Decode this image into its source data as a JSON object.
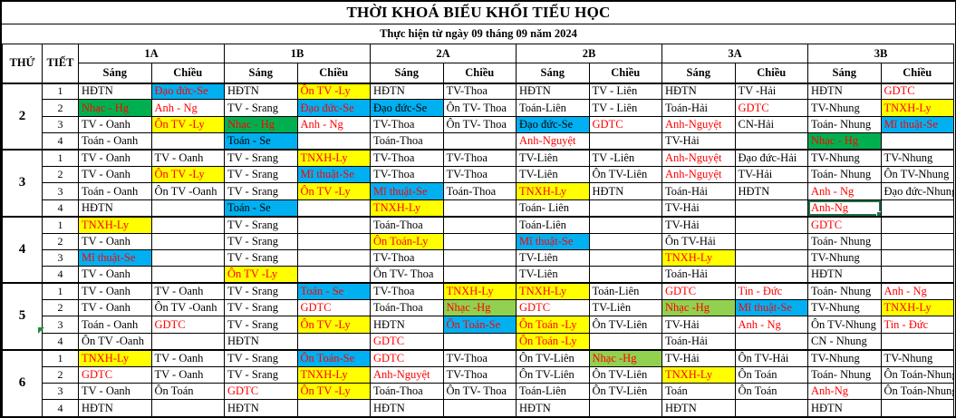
{
  "title": "THỜI KHOÁ BIỂU KHỐI TIỂU HỌC",
  "subtitle": "Thực hiện từ ngày 09 tháng 09 năm 2024",
  "header": {
    "day_col": "THỨ",
    "period_col": "TIẾT",
    "classes": [
      "1A",
      "1B",
      "2A",
      "2B",
      "3A",
      "3B"
    ],
    "session_morning": "Sáng",
    "session_afternoon": "Chiều"
  },
  "colors": {
    "highlight_yellow": "#FFFF00",
    "highlight_blue": "#00B0F0",
    "highlight_green": "#00B050",
    "highlight_lightgreen": "#92D050",
    "accent_red": "#FF0000",
    "selection_green": "#1F7245"
  },
  "days": [
    {
      "day": "2",
      "periods": [
        {
          "period": "1",
          "cells": [
            {
              "t": "HĐTN"
            },
            {
              "t": "Đạo đức-Se",
              "fg": "red",
              "bg": "blue"
            },
            {
              "t": "HĐTN"
            },
            {
              "t": "Ôn TV -Ly",
              "fg": "red",
              "bg": "yellow"
            },
            {
              "t": "HĐTN"
            },
            {
              "t": "TV-Thoa"
            },
            {
              "t": "HĐTN"
            },
            {
              "t": "TV - Liên"
            },
            {
              "t": "HĐTN"
            },
            {
              "t": "TV -Hải"
            },
            {
              "t": "HĐTN"
            },
            {
              "t": "GDTC",
              "fg": "red"
            }
          ]
        },
        {
          "period": "2",
          "cells": [
            {
              "t": "Nhạc - Hg",
              "fg": "red",
              "bg": "green"
            },
            {
              "t": "Anh - Ng",
              "fg": "red"
            },
            {
              "t": "TV - Srang"
            },
            {
              "t": "Đạo đức-Se",
              "fg": "red",
              "bg": "blue"
            },
            {
              "t": "Đạo đức-Se",
              "bg": "blue"
            },
            {
              "t": "Ôn TV- Thoa"
            },
            {
              "t": "Toán-Liên"
            },
            {
              "t": "TV - Liên"
            },
            {
              "t": "Toán-Hải"
            },
            {
              "t": "GDTC",
              "fg": "red"
            },
            {
              "t": "TV-Nhung"
            },
            {
              "t": "TNXH-Ly",
              "fg": "red",
              "bg": "yellow"
            }
          ]
        },
        {
          "period": "3",
          "cells": [
            {
              "t": "TV - Oanh"
            },
            {
              "t": "Ôn TV -Ly",
              "fg": "red",
              "bg": "yellow"
            },
            {
              "t": "Nhạc - Hg",
              "fg": "red",
              "bg": "green"
            },
            {
              "t": "Anh - Ng",
              "fg": "red"
            },
            {
              "t": "TV-Thoa"
            },
            {
              "t": "Ôn TV- Thoa"
            },
            {
              "t": "Đạo đức-Se",
              "bg": "blue"
            },
            {
              "t": "GDTC",
              "fg": "red"
            },
            {
              "t": "Anh-Nguyệt",
              "fg": "red"
            },
            {
              "t": "CN-Hải"
            },
            {
              "t": "Toán- Nhung"
            },
            {
              "t": "Mĩ thuật-Se",
              "fg": "red",
              "bg": "blue"
            }
          ]
        },
        {
          "period": "4",
          "cells": [
            {
              "t": "Toán - Oanh"
            },
            {},
            {
              "t": "Toán - Se",
              "bg": "blue"
            },
            {},
            {
              "t": "Toán-Thoa"
            },
            {},
            {
              "t": "Anh-Nguyệt",
              "fg": "red"
            },
            {},
            {
              "t": "TV-Hải"
            },
            {},
            {
              "t": "Nhạc - Hg",
              "fg": "red",
              "bg": "green"
            },
            {}
          ]
        }
      ]
    },
    {
      "day": "3",
      "periods": [
        {
          "period": "1",
          "cells": [
            {
              "t": "TV - Oanh"
            },
            {
              "t": "TV - Oanh"
            },
            {
              "t": "TV - Srang"
            },
            {
              "t": "TNXH-Ly",
              "fg": "red",
              "bg": "yellow"
            },
            {
              "t": "TV-Thoa"
            },
            {
              "t": "TV-Thoa"
            },
            {
              "t": "TV-Liên"
            },
            {
              "t": "TV -Liên"
            },
            {
              "t": "Anh-Nguyệt",
              "fg": "red"
            },
            {
              "t": "Đạo đức-Hải"
            },
            {
              "t": "TV-Nhung"
            },
            {
              "t": "TV-Nhung"
            }
          ]
        },
        {
          "period": "2",
          "cells": [
            {
              "t": "TV - Oanh"
            },
            {
              "t": "Ôn TV -Ly",
              "fg": "red",
              "bg": "yellow"
            },
            {
              "t": "TV - Srang"
            },
            {
              "t": "Mĩ thuật-Se",
              "fg": "red",
              "bg": "blue"
            },
            {
              "t": "TV-Thoa"
            },
            {
              "t": "TV-Thoa"
            },
            {
              "t": "TV-Liên"
            },
            {
              "t": "Ôn TV-Liên"
            },
            {
              "t": "Anh-Nguyệt",
              "fg": "red"
            },
            {
              "t": "TV-Hải"
            },
            {
              "t": "Toán- Nhung"
            },
            {
              "t": "Ôn TV-Nhung"
            }
          ]
        },
        {
          "period": "3",
          "cells": [
            {
              "t": "Toán - Oanh"
            },
            {
              "t": "Ôn TV -Oanh"
            },
            {
              "t": "TV - Srang"
            },
            {
              "t": "Ôn TV -Ly",
              "fg": "red",
              "bg": "yellow"
            },
            {
              "t": "Mĩ thuật-Se",
              "fg": "red",
              "bg": "blue"
            },
            {
              "t": "Toán-Thoa"
            },
            {
              "t": "TNXH-Ly",
              "fg": "red",
              "bg": "yellow"
            },
            {
              "t": "HĐTN"
            },
            {
              "t": "Toán-Hải"
            },
            {
              "t": "HĐTN"
            },
            {
              "t": "Anh - Ng",
              "fg": "red"
            },
            {
              "t": "Đạo đức-Nhung"
            }
          ]
        },
        {
          "period": "4",
          "cells": [
            {
              "t": "HĐTN"
            },
            {},
            {
              "t": "Toán - Se",
              "bg": "blue"
            },
            {},
            {
              "t": "TNXH-Ly",
              "fg": "red",
              "bg": "yellow"
            },
            {},
            {
              "t": "Toán- Liên"
            },
            {},
            {
              "t": "TV-Hải"
            },
            {},
            {
              "t": "Anh-Ng",
              "fg": "red",
              "selected": true
            },
            {}
          ]
        }
      ]
    },
    {
      "day": "4",
      "periods": [
        {
          "period": "1",
          "cells": [
            {
              "t": "TNXH-Ly",
              "fg": "red",
              "bg": "yellow"
            },
            {},
            {
              "t": "TV - Srang"
            },
            {},
            {
              "t": "Toán-Thoa"
            },
            {},
            {
              "t": "Toán-Liên"
            },
            {},
            {
              "t": "TV-Hải"
            },
            {},
            {
              "t": "GDTC",
              "fg": "red"
            },
            {}
          ]
        },
        {
          "period": "2",
          "cells": [
            {
              "t": "TV - Oanh"
            },
            {},
            {
              "t": "TV - Srang"
            },
            {},
            {
              "t": "Ôn Toán-Ly",
              "fg": "red",
              "bg": "yellow"
            },
            {},
            {
              "t": "Mĩ thuật-Se",
              "fg": "red",
              "bg": "blue"
            },
            {},
            {
              "t": "Ôn TV-Hải"
            },
            {},
            {
              "t": "Toán- Nhung"
            },
            {}
          ]
        },
        {
          "period": "3",
          "cells": [
            {
              "t": "Mĩ thuật-Se",
              "fg": "red",
              "bg": "blue"
            },
            {},
            {
              "t": "TV - Srang"
            },
            {},
            {
              "t": "TV-Thoa"
            },
            {},
            {
              "t": "TV-Liên"
            },
            {},
            {
              "t": "TNXH-Ly",
              "fg": "red",
              "bg": "yellow"
            },
            {},
            {
              "t": "TV-Nhung"
            },
            {}
          ]
        },
        {
          "period": "4",
          "cells": [
            {
              "t": "TV - Oanh"
            },
            {},
            {
              "t": "Ôn TV -Ly",
              "fg": "red",
              "bg": "yellow"
            },
            {},
            {
              "t": "Ôn TV- Thoa"
            },
            {},
            {
              "t": "TV-Liên"
            },
            {},
            {
              "t": "Toán-Hải"
            },
            {},
            {
              "t": "HĐTN"
            },
            {}
          ]
        }
      ]
    },
    {
      "day": "5",
      "periods": [
        {
          "period": "1",
          "cells": [
            {
              "t": "TV - Oanh"
            },
            {
              "t": "TV - Oanh"
            },
            {
              "t": "TV - Srang"
            },
            {
              "t": "Toán - Se",
              "fg": "red",
              "bg": "blue"
            },
            {
              "t": "TV-Thoa"
            },
            {
              "t": "TNXH-Ly",
              "fg": "red",
              "bg": "yellow"
            },
            {
              "t": "TNXH-Ly",
              "fg": "red",
              "bg": "yellow"
            },
            {
              "t": "Toán-Liên"
            },
            {
              "t": "GDTC",
              "fg": "red"
            },
            {
              "t": "Tin - Đức",
              "fg": "red"
            },
            {
              "t": "Toán- Nhung"
            },
            {
              "t": "Anh - Ng",
              "fg": "red"
            }
          ]
        },
        {
          "period": "2",
          "cells": [
            {
              "t": "TV - Oanh"
            },
            {
              "t": "Ôn TV -Oanh"
            },
            {
              "t": "TV - Srang"
            },
            {
              "t": "GDTC",
              "fg": "red"
            },
            {
              "t": "Toán-Thoa"
            },
            {
              "t": "Nhạc -Hg",
              "fg": "red",
              "bg": "lightgreen"
            },
            {
              "t": "GDTC",
              "fg": "red"
            },
            {
              "t": "TV-Liên"
            },
            {
              "t": "Nhạc -Hg",
              "fg": "red",
              "bg": "lightgreen"
            },
            {
              "t": "Mĩ thuật-Se",
              "fg": "red",
              "bg": "blue"
            },
            {
              "t": "TV-Nhung"
            },
            {
              "t": "TNXH-Ly",
              "fg": "red",
              "bg": "yellow"
            }
          ]
        },
        {
          "period": "3",
          "cells": [
            {
              "t": "Toán - Oanh"
            },
            {
              "t": "GDTC",
              "fg": "red"
            },
            {
              "t": "TV - Srang"
            },
            {
              "t": "Ôn TV -Ly",
              "fg": "red",
              "bg": "yellow"
            },
            {
              "t": "HĐTN"
            },
            {
              "t": "Ôn Toán-Se",
              "fg": "red",
              "bg": "blue"
            },
            {
              "t": "Ôn Toán -Ly",
              "fg": "red",
              "bg": "yellow"
            },
            {
              "t": "Ôn TV-Liên"
            },
            {
              "t": "TV-Hải"
            },
            {
              "t": "Anh - Ng",
              "fg": "red"
            },
            {
              "t": "Ôn TV-Nhung"
            },
            {
              "t": "Tin - Đức",
              "fg": "red"
            }
          ]
        },
        {
          "period": "4",
          "cells": [
            {
              "t": "Ôn TV -Oanh"
            },
            {},
            {
              "t": "HĐTN"
            },
            {},
            {
              "t": "GDTC",
              "fg": "red"
            },
            {},
            {
              "t": "Ôn Toán -Ly",
              "fg": "red",
              "bg": "yellow"
            },
            {},
            {
              "t": "Toán-Hải"
            },
            {},
            {
              "t": "CN - Nhung"
            },
            {}
          ]
        }
      ]
    },
    {
      "day": "6",
      "periods": [
        {
          "period": "1",
          "cells": [
            {
              "t": "TNXH-Ly",
              "fg": "red",
              "bg": "yellow"
            },
            {
              "t": "TV - Oanh"
            },
            {
              "t": "TV - Srang"
            },
            {
              "t": "Ôn Toán-Se",
              "fg": "red",
              "bg": "blue"
            },
            {
              "t": "GDTC",
              "fg": "red"
            },
            {
              "t": "TV-Thoa"
            },
            {
              "t": "Ôn TV-Liên"
            },
            {
              "t": "Nhạc -Hg",
              "fg": "red",
              "bg": "lightgreen"
            },
            {
              "t": "TV-Hải"
            },
            {
              "t": "Ôn TV-Hải"
            },
            {
              "t": "TV-Nhung"
            },
            {
              "t": "TV-Nhung"
            }
          ]
        },
        {
          "period": "2",
          "cells": [
            {
              "t": "GDTC",
              "fg": "red"
            },
            {
              "t": "TV - Oanh"
            },
            {
              "t": "TV - Srang"
            },
            {
              "t": "TNXH-Ly",
              "fg": "red",
              "bg": "yellow"
            },
            {
              "t": "Anh-Nguyệt",
              "fg": "red"
            },
            {
              "t": "TV-Thoa"
            },
            {
              "t": "Ôn TV-Liên"
            },
            {
              "t": "Ôn TV-Liên"
            },
            {
              "t": "TNXH-Ly",
              "fg": "red",
              "bg": "yellow"
            },
            {
              "t": "Ôn Toán"
            },
            {
              "t": "Toán- Nhung"
            },
            {
              "t": "Ôn Toán-Nhung"
            }
          ]
        },
        {
          "period": "3",
          "cells": [
            {
              "t": "TV - Oanh"
            },
            {
              "t": "Ôn Toán"
            },
            {
              "t": "GDTC",
              "fg": "red"
            },
            {
              "t": "Ôn TV -Ly",
              "fg": "red",
              "bg": "yellow"
            },
            {
              "t": "Toán-Thoa"
            },
            {
              "t": "Ôn TV- Thoa"
            },
            {
              "t": "Toán-Liên"
            },
            {
              "t": "Ôn TV-Liên"
            },
            {
              "t": "Toán"
            },
            {
              "t": "Ôn Toán"
            },
            {
              "t": "Anh-Ng",
              "fg": "red"
            },
            {
              "t": "Ôn Toán-Nhung"
            }
          ]
        },
        {
          "period": "4",
          "cells": [
            {
              "t": "HĐTN"
            },
            {},
            {
              "t": "HĐTN"
            },
            {},
            {
              "t": "HĐTN"
            },
            {},
            {
              "t": "HĐTN"
            },
            {},
            {
              "t": "HĐTN"
            },
            {},
            {
              "t": "HĐTN"
            },
            {}
          ]
        }
      ]
    }
  ]
}
